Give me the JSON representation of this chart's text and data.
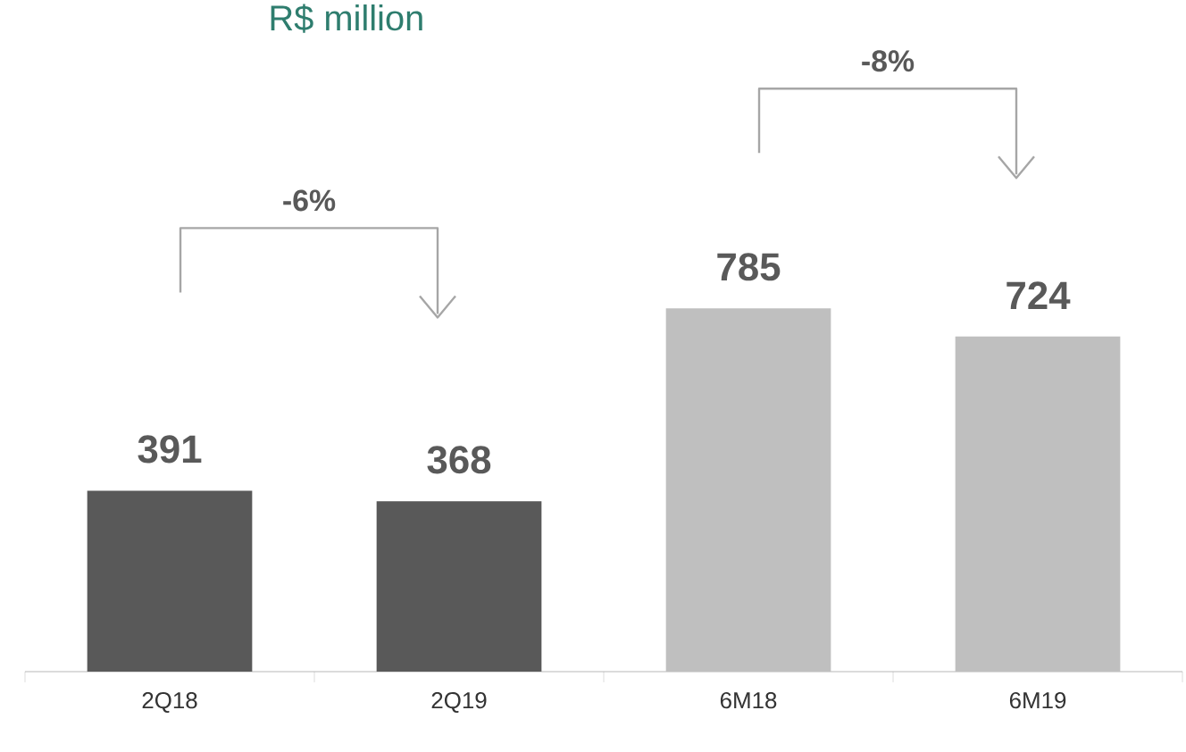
{
  "chart_data": {
    "type": "bar",
    "title": "R$ million",
    "categories": [
      "2Q18",
      "2Q19",
      "6M18",
      "6M19"
    ],
    "values": [
      391,
      368,
      785,
      724
    ],
    "colors": [
      "#595959",
      "#595959",
      "#bfbfbf",
      "#bfbfbf"
    ],
    "data_labels": true,
    "annotations": [
      "-6%",
      "-8%"
    ]
  }
}
